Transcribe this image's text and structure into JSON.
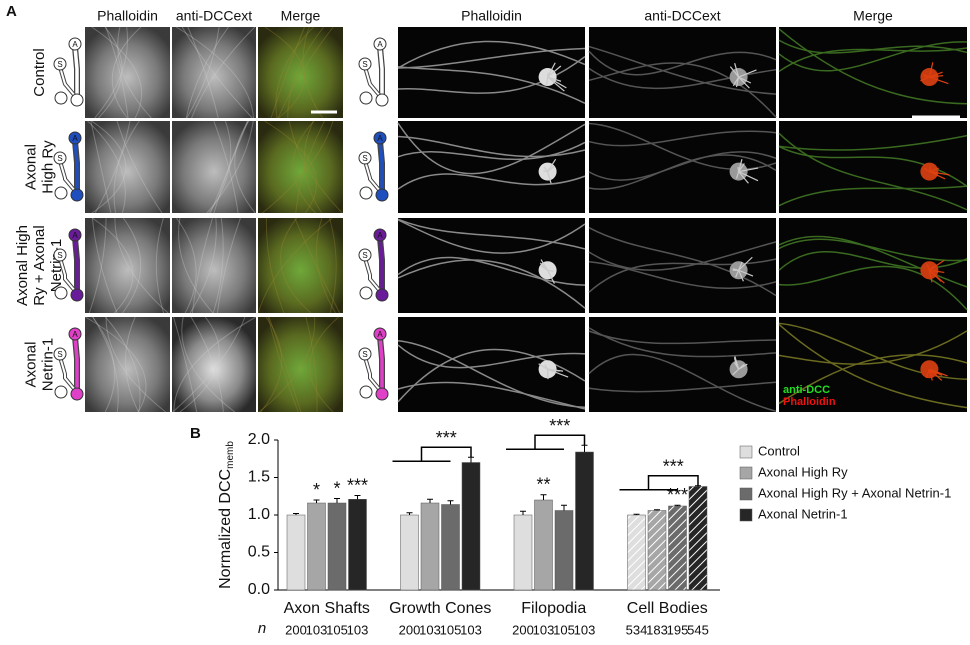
{
  "panel_a": {
    "label": "A",
    "column_headers": [
      "Phalloidin",
      "anti-DCCext",
      "Merge",
      "Phalloidin",
      "anti-DCCext",
      "Merge"
    ],
    "row_labels": [
      [
        "Control"
      ],
      [
        "Axonal",
        "High Ry"
      ],
      [
        "Axonal High",
        "Ry + Axonal",
        "Netrin-1"
      ],
      [
        "Axonal",
        "Netrin-1"
      ]
    ],
    "icon_labels": [
      "A",
      "S"
    ],
    "overlay_labels": [
      {
        "text": "anti-DCC",
        "color": "#22dd22"
      },
      {
        "text": "Phalloidin",
        "color": "#ee1111"
      }
    ]
  },
  "chart_data": {
    "type": "bar",
    "panel_label": "B",
    "y_label": "Normalized DCC",
    "y_label_sub": "memb",
    "categories": [
      "Axon Shafts",
      "Growth Cones",
      "Filopodia",
      "Cell Bodies"
    ],
    "hatched_categories": [
      "Cell Bodies"
    ],
    "series": [
      {
        "name": "Control",
        "color": "#dedede",
        "values": [
          1.0,
          1.0,
          1.0,
          1.0
        ],
        "errors": [
          0.02,
          0.03,
          0.05,
          0.01
        ]
      },
      {
        "name": "Axonal High Ry",
        "color": "#a6a6a6",
        "values": [
          1.16,
          1.16,
          1.2,
          1.06
        ],
        "errors": [
          0.04,
          0.05,
          0.07,
          0.01
        ]
      },
      {
        "name": "Axonal High Ry + Axonal Netrin-1",
        "color": "#6b6b6b",
        "values": [
          1.16,
          1.14,
          1.06,
          1.12
        ],
        "errors": [
          0.06,
          0.05,
          0.07,
          0.01
        ]
      },
      {
        "name": "Axonal Netrin-1",
        "color": "#262626",
        "values": [
          1.21,
          1.7,
          1.84,
          1.38
        ],
        "errors": [
          0.05,
          0.07,
          0.09,
          0.01
        ]
      }
    ],
    "ylim": [
      0,
      2.0
    ],
    "yticks": [
      {
        "value": 0,
        "label": "0.0"
      },
      0.5,
      {
        "value": 1,
        "label": "1.0"
      },
      1.5,
      {
        "value": 2,
        "label": "2.0"
      }
    ],
    "annotations": [
      "*",
      "*",
      "***",
      "***",
      "**",
      "***",
      "***",
      "***"
    ],
    "n_label": "n",
    "n_counts": [
      [
        200,
        103,
        105,
        103
      ],
      [
        200,
        103,
        105,
        103
      ],
      [
        200,
        103,
        105,
        103
      ],
      [
        534,
        183,
        195,
        545
      ]
    ]
  }
}
